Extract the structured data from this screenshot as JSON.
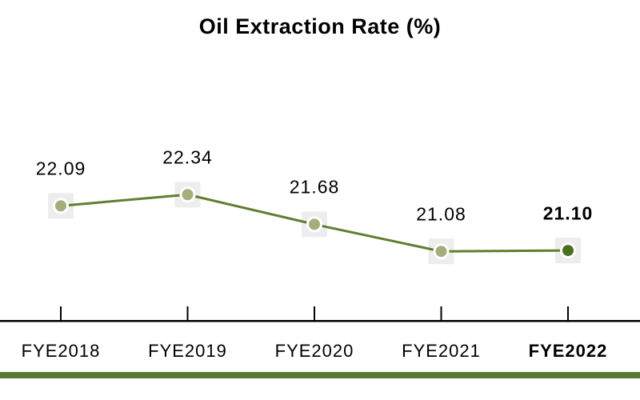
{
  "title": "Oil Extraction Rate (%)",
  "chart_data": {
    "type": "line",
    "title": "Oil Extraction Rate (%)",
    "categories": [
      "FYE2018",
      "FYE2019",
      "FYE2020",
      "FYE2021",
      "FYE2022"
    ],
    "values": [
      22.09,
      22.34,
      21.68,
      21.08,
      21.1
    ],
    "value_labels": [
      "22.09",
      "22.34",
      "21.68",
      "21.08",
      "21.10"
    ],
    "emphasis_index": 4,
    "xlabel": "",
    "ylabel": "",
    "grid": false,
    "legend": false,
    "marker_style": "circle-on-tile",
    "colors": {
      "line": "#5f7f2f",
      "marker_fill": "#a4ad7b",
      "marker_fill_emphasis": "#4c6e20",
      "marker_ring": "#ffffff",
      "marker_tile": "#ededed",
      "axis": "#000000",
      "text": "#000000",
      "footer_bar": "#5a7a33"
    }
  }
}
